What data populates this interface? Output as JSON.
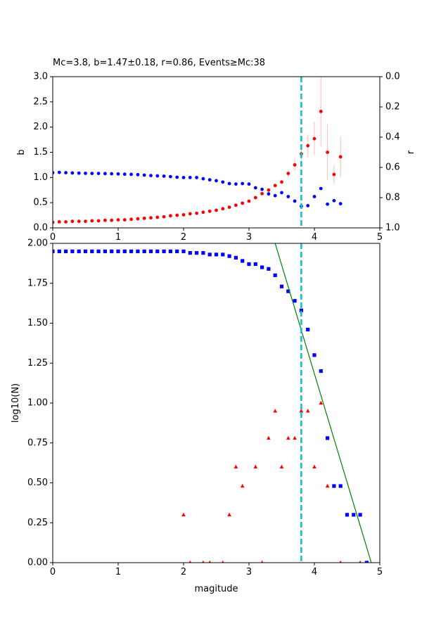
{
  "chart_data": [
    {
      "type": "scatter",
      "title": "Mc=3.8, b=1.47±0.18, r=0.86, Events≥Mc:38",
      "xlabel": "",
      "ylabel": "b",
      "ylabel_right": "r",
      "xlim": [
        0,
        5
      ],
      "ylim": [
        0,
        3
      ],
      "ylim_right": [
        1,
        0
      ],
      "x_ticks": [
        "0",
        "1",
        "2",
        "3",
        "4",
        "5"
      ],
      "y_ticks": [
        "0.0",
        "0.5",
        "1.0",
        "1.5",
        "2.0",
        "2.5",
        "3.0"
      ],
      "y_ticks_right": [
        "0.0",
        "0.2",
        "0.4",
        "0.6",
        "0.8",
        "1.0"
      ],
      "mc_line": 3.8,
      "grid": false,
      "series": [
        {
          "axis": "left",
          "marker": "circle",
          "color": "#ff0000",
          "x": [
            0.0,
            0.1,
            0.2,
            0.3,
            0.4,
            0.5,
            0.6,
            0.7,
            0.8,
            0.9,
            1.0,
            1.1,
            1.2,
            1.3,
            1.4,
            1.5,
            1.6,
            1.7,
            1.8,
            1.9,
            2.0,
            2.1,
            2.2,
            2.3,
            2.4,
            2.5,
            2.6,
            2.7,
            2.8,
            2.9,
            3.0,
            3.1,
            3.2,
            3.3,
            3.4,
            3.5,
            3.6,
            3.7,
            3.8,
            3.9,
            4.0,
            4.1,
            4.2,
            4.3,
            4.4
          ],
          "y": [
            0.11,
            0.12,
            0.12,
            0.13,
            0.13,
            0.13,
            0.14,
            0.14,
            0.15,
            0.15,
            0.16,
            0.16,
            0.17,
            0.18,
            0.19,
            0.2,
            0.21,
            0.22,
            0.24,
            0.25,
            0.26,
            0.28,
            0.29,
            0.31,
            0.33,
            0.35,
            0.38,
            0.41,
            0.45,
            0.49,
            0.53,
            0.6,
            0.68,
            0.75,
            0.84,
            0.91,
            1.08,
            1.25,
            1.47,
            1.63,
            1.77,
            2.31,
            1.5,
            1.06,
            1.41
          ],
          "yerr": [
            0,
            0,
            0,
            0,
            0,
            0,
            0,
            0,
            0,
            0,
            0,
            0,
            0,
            0,
            0,
            0,
            0,
            0,
            0,
            0,
            0,
            0,
            0,
            0,
            0,
            0,
            0,
            0,
            0,
            0,
            0,
            0,
            0,
            0,
            0.02,
            0.04,
            0.08,
            0.12,
            0.18,
            0.22,
            0.33,
            0.7,
            0.55,
            0.2,
            0.4
          ]
        },
        {
          "axis": "right",
          "marker": "circle",
          "color": "#0000ff",
          "x": [
            0.0,
            0.1,
            0.2,
            0.3,
            0.4,
            0.5,
            0.6,
            0.7,
            0.8,
            0.9,
            1.0,
            1.1,
            1.2,
            1.3,
            1.4,
            1.5,
            1.6,
            1.7,
            1.8,
            1.9,
            2.0,
            2.1,
            2.2,
            2.3,
            2.4,
            2.5,
            2.6,
            2.7,
            2.8,
            2.9,
            3.0,
            3.1,
            3.2,
            3.3,
            3.4,
            3.5,
            3.6,
            3.7,
            3.8,
            3.9,
            4.0,
            4.1,
            4.2,
            4.3,
            4.4
          ],
          "y": [
            0.635,
            0.633,
            0.635,
            0.637,
            0.638,
            0.639,
            0.64,
            0.64,
            0.641,
            0.642,
            0.643,
            0.645,
            0.646,
            0.648,
            0.651,
            0.654,
            0.656,
            0.658,
            0.661,
            0.665,
            0.667,
            0.667,
            0.667,
            0.675,
            0.682,
            0.688,
            0.697,
            0.707,
            0.71,
            0.707,
            0.71,
            0.735,
            0.745,
            0.775,
            0.787,
            0.767,
            0.793,
            0.823,
            0.857,
            0.853,
            0.793,
            0.74,
            0.843,
            0.82,
            0.84
          ]
        }
      ]
    },
    {
      "type": "scatter",
      "title": "",
      "xlabel": "magitude",
      "ylabel": "log10(N)",
      "xlim": [
        0,
        5
      ],
      "ylim": [
        0,
        2
      ],
      "x_ticks": [
        "0",
        "1",
        "2",
        "3",
        "4",
        "5"
      ],
      "y_ticks": [
        "0.00",
        "0.25",
        "0.50",
        "0.75",
        "1.00",
        "1.25",
        "1.50",
        "1.75",
        "2.00"
      ],
      "mc_line": 3.8,
      "grid": false,
      "series": [
        {
          "marker": "square",
          "color": "#0000ff",
          "x": [
            0.0,
            0.1,
            0.2,
            0.3,
            0.4,
            0.5,
            0.6,
            0.7,
            0.8,
            0.9,
            1.0,
            1.1,
            1.2,
            1.3,
            1.4,
            1.5,
            1.6,
            1.7,
            1.8,
            1.9,
            2.0,
            2.1,
            2.2,
            2.3,
            2.4,
            2.5,
            2.6,
            2.7,
            2.8,
            2.9,
            3.0,
            3.1,
            3.2,
            3.3,
            3.4,
            3.5,
            3.6,
            3.7,
            3.8,
            3.9,
            4.0,
            4.1,
            4.2,
            4.3,
            4.4,
            4.5,
            4.6,
            4.7,
            4.8
          ],
          "y": [
            1.95,
            1.95,
            1.95,
            1.95,
            1.95,
            1.95,
            1.95,
            1.95,
            1.95,
            1.95,
            1.95,
            1.95,
            1.95,
            1.95,
            1.95,
            1.95,
            1.95,
            1.95,
            1.95,
            1.95,
            1.95,
            1.94,
            1.94,
            1.94,
            1.93,
            1.93,
            1.93,
            1.92,
            1.91,
            1.89,
            1.87,
            1.87,
            1.85,
            1.84,
            1.8,
            1.73,
            1.7,
            1.64,
            1.58,
            1.46,
            1.3,
            1.2,
            0.78,
            0.48,
            0.48,
            0.3,
            0.3,
            0.3,
            0.0
          ]
        },
        {
          "marker": "triangle",
          "color": "#ff0000",
          "x": [
            2.0,
            2.1,
            2.3,
            2.4,
            2.6,
            2.7,
            2.8,
            2.9,
            3.1,
            3.2,
            3.3,
            3.4,
            3.5,
            3.6,
            3.7,
            3.8,
            3.9,
            4.0,
            4.1,
            4.2,
            4.4,
            4.7
          ],
          "y": [
            0.3,
            0.0,
            0.0,
            0.0,
            0.0,
            0.3,
            0.6,
            0.48,
            0.6,
            0.0,
            0.78,
            0.95,
            0.6,
            0.78,
            0.78,
            0.95,
            0.95,
            0.6,
            1.0,
            0.48,
            0.0,
            0.0
          ]
        }
      ],
      "fit_line": {
        "color": "#008000",
        "x": [
          3.4,
          4.87
        ],
        "y": [
          2.0,
          0.0
        ]
      }
    }
  ]
}
